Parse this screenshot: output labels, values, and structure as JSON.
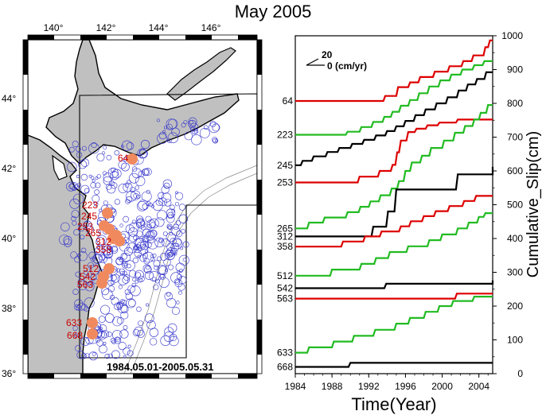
{
  "title": "May 2005",
  "map": {
    "lon_ticks": [
      "140°",
      "142°",
      "144°",
      "146°"
    ],
    "lat_ticks": [
      "44°",
      "42°",
      "40°",
      "38°",
      "36°"
    ],
    "date_range": "1984.05.01-2005.05.31",
    "event_labels": [
      "64",
      "223",
      "245",
      "253",
      "265",
      "312",
      "358",
      "512",
      "542",
      "563",
      "633",
      "668"
    ],
    "colors": {
      "land": "#c0c0c0",
      "event": "#f08a5e",
      "event_label": "#cc0000",
      "seismicity": "#3333cc"
    }
  },
  "chart_data": {
    "type": "line",
    "title": "",
    "xlabel": "Time(Year)",
    "ylabel": "Cumulative_Slip(cm)",
    "xlim": [
      1984,
      2005.5
    ],
    "ylim": [
      0,
      1000
    ],
    "x_ticks": [
      1984,
      1988,
      1992,
      1996,
      2000,
      2004
    ],
    "y_ticks": [
      0,
      100,
      200,
      300,
      400,
      500,
      600,
      700,
      800,
      900,
      1000
    ],
    "scale_legend": {
      "value": "20",
      "rate": "0 (cm/yr)"
    },
    "left_labels": [
      "64",
      "223",
      "245",
      "253",
      "265",
      "312",
      "358",
      "512",
      "542",
      "563",
      "633",
      "668"
    ],
    "series": [
      {
        "label": "64",
        "color": "#dd0000",
        "points": [
          [
            1984,
            807
          ],
          [
            1993.6,
            807
          ],
          [
            1993.8,
            822
          ],
          [
            1995.0,
            822
          ],
          [
            1995.2,
            848
          ],
          [
            1996.3,
            848
          ],
          [
            1996.5,
            862
          ],
          [
            1997.4,
            862
          ],
          [
            1997.6,
            878
          ],
          [
            1999.0,
            878
          ],
          [
            1999.2,
            894
          ],
          [
            2000.6,
            894
          ],
          [
            2000.8,
            910
          ],
          [
            2002.1,
            910
          ],
          [
            2002.3,
            925
          ],
          [
            2003.2,
            925
          ],
          [
            2003.4,
            942
          ],
          [
            2004.5,
            942
          ],
          [
            2004.7,
            966
          ],
          [
            2005.0,
            966
          ],
          [
            2005.2,
            986
          ],
          [
            2005.5,
            986
          ]
        ]
      },
      {
        "label": "223",
        "color": "#22bb22",
        "points": [
          [
            1984,
            707
          ],
          [
            1989.5,
            707
          ],
          [
            1989.7,
            716
          ],
          [
            1991.0,
            716
          ],
          [
            1991.2,
            730
          ],
          [
            1992.3,
            730
          ],
          [
            1992.5,
            745
          ],
          [
            1993.5,
            745
          ],
          [
            1993.7,
            760
          ],
          [
            1994.4,
            760
          ],
          [
            1994.6,
            775
          ],
          [
            1995.3,
            775
          ],
          [
            1995.5,
            793
          ],
          [
            1996.3,
            793
          ],
          [
            1996.5,
            810
          ],
          [
            1997.3,
            810
          ],
          [
            1997.5,
            830
          ],
          [
            1998.4,
            830
          ],
          [
            1998.6,
            850
          ],
          [
            1999.6,
            850
          ],
          [
            1999.8,
            868
          ],
          [
            2000.8,
            868
          ],
          [
            2001.0,
            885
          ],
          [
            2002.0,
            885
          ],
          [
            2002.2,
            900
          ],
          [
            2003.3,
            900
          ],
          [
            2003.5,
            913
          ],
          [
            2004.4,
            913
          ],
          [
            2004.6,
            925
          ],
          [
            2005.5,
            925
          ]
        ]
      },
      {
        "label": "245",
        "color": "#000000",
        "points": [
          [
            1984,
            617
          ],
          [
            1984.6,
            617
          ],
          [
            1984.8,
            630
          ],
          [
            1985.8,
            630
          ],
          [
            1986.0,
            643
          ],
          [
            1987.3,
            643
          ],
          [
            1987.5,
            656
          ],
          [
            1988.6,
            656
          ],
          [
            1988.8,
            668
          ],
          [
            1990.0,
            668
          ],
          [
            1990.2,
            680
          ],
          [
            1991.3,
            680
          ],
          [
            1991.5,
            692
          ],
          [
            1992.6,
            692
          ],
          [
            1992.8,
            705
          ],
          [
            1993.8,
            705
          ],
          [
            1994.0,
            718
          ],
          [
            1994.8,
            718
          ],
          [
            1995.0,
            732
          ],
          [
            1995.8,
            732
          ],
          [
            1996.0,
            748
          ],
          [
            1996.9,
            748
          ],
          [
            1997.1,
            765
          ],
          [
            1998.0,
            765
          ],
          [
            1998.2,
            782
          ],
          [
            1999.2,
            782
          ],
          [
            1999.4,
            800
          ],
          [
            2000.4,
            800
          ],
          [
            2000.6,
            818
          ],
          [
            2001.6,
            818
          ],
          [
            2001.8,
            838
          ],
          [
            2002.6,
            838
          ],
          [
            2002.8,
            856
          ],
          [
            2003.6,
            856
          ],
          [
            2003.8,
            872
          ],
          [
            2004.6,
            872
          ],
          [
            2004.8,
            892
          ],
          [
            2005.5,
            892
          ]
        ]
      },
      {
        "label": "253",
        "color": "#dd0000",
        "points": [
          [
            1984,
            566
          ],
          [
            1990.8,
            566
          ],
          [
            1991.0,
            583
          ],
          [
            1993.0,
            583
          ],
          [
            1993.2,
            600
          ],
          [
            1994.4,
            600
          ],
          [
            1994.6,
            618
          ],
          [
            1994.9,
            618
          ],
          [
            1995.1,
            655
          ],
          [
            1995.3,
            655
          ],
          [
            1995.5,
            690
          ],
          [
            1996.1,
            690
          ],
          [
            1996.3,
            715
          ],
          [
            1997.0,
            715
          ],
          [
            1997.2,
            725
          ],
          [
            1998.2,
            725
          ],
          [
            1998.4,
            735
          ],
          [
            1999.5,
            735
          ],
          [
            1999.7,
            743
          ],
          [
            2001.5,
            743
          ],
          [
            2001.7,
            752
          ],
          [
            2005.5,
            752
          ]
        ]
      },
      {
        "label": "265",
        "color": "#22bb22",
        "points": [
          [
            1984,
            430
          ],
          [
            1985.3,
            430
          ],
          [
            1985.5,
            447
          ],
          [
            1987.0,
            447
          ],
          [
            1987.2,
            462
          ],
          [
            1989.5,
            462
          ],
          [
            1989.7,
            478
          ],
          [
            1990.9,
            478
          ],
          [
            1991.1,
            494
          ],
          [
            1992.0,
            494
          ],
          [
            1992.2,
            510
          ],
          [
            1993.1,
            510
          ],
          [
            1993.3,
            528
          ],
          [
            1994.3,
            528
          ],
          [
            1994.5,
            548
          ],
          [
            1995.1,
            548
          ],
          [
            1995.3,
            570
          ],
          [
            1995.8,
            570
          ],
          [
            1996.0,
            600
          ],
          [
            1996.5,
            600
          ],
          [
            1996.7,
            625
          ],
          [
            1997.6,
            625
          ],
          [
            1997.8,
            645
          ],
          [
            1998.6,
            645
          ],
          [
            1998.8,
            668
          ],
          [
            2000.0,
            668
          ],
          [
            2000.2,
            690
          ],
          [
            2001.2,
            690
          ],
          [
            2001.4,
            713
          ],
          [
            2002.3,
            713
          ],
          [
            2002.5,
            733
          ],
          [
            2003.3,
            733
          ],
          [
            2003.5,
            752
          ],
          [
            2004.0,
            752
          ],
          [
            2004.2,
            772
          ],
          [
            2004.8,
            772
          ],
          [
            2005.0,
            795
          ],
          [
            2005.5,
            795
          ]
        ]
      },
      {
        "label": "312",
        "color": "#000000",
        "points": [
          [
            1984,
            406
          ],
          [
            1992.3,
            406
          ],
          [
            1992.5,
            435
          ],
          [
            1993.9,
            435
          ],
          [
            1994.1,
            480
          ],
          [
            1994.8,
            480
          ],
          [
            1995.0,
            545
          ],
          [
            2001.5,
            545
          ],
          [
            2001.7,
            590
          ],
          [
            2005.5,
            590
          ],
          [
            2005.5,
            612
          ]
        ]
      },
      {
        "label": "358",
        "color": "#dd0000",
        "points": [
          [
            1984,
            376
          ],
          [
            1989.0,
            376
          ],
          [
            1989.2,
            391
          ],
          [
            1991.4,
            391
          ],
          [
            1991.6,
            406
          ],
          [
            1993.2,
            406
          ],
          [
            1993.4,
            421
          ],
          [
            1995.3,
            421
          ],
          [
            1995.5,
            436
          ],
          [
            1996.4,
            436
          ],
          [
            1996.6,
            451
          ],
          [
            1997.8,
            451
          ],
          [
            1998.0,
            466
          ],
          [
            1999.1,
            466
          ],
          [
            1999.3,
            481
          ],
          [
            2000.6,
            481
          ],
          [
            2000.8,
            496
          ],
          [
            2002.2,
            496
          ],
          [
            2002.4,
            511
          ],
          [
            2003.5,
            511
          ],
          [
            2003.7,
            526
          ],
          [
            2005.5,
            526
          ]
        ]
      },
      {
        "label": "512",
        "color": "#22bb22",
        "points": [
          [
            1984,
            290
          ],
          [
            1987.8,
            290
          ],
          [
            1988.0,
            308
          ],
          [
            1991.0,
            308
          ],
          [
            1991.2,
            325
          ],
          [
            1992.6,
            325
          ],
          [
            1992.8,
            342
          ],
          [
            1994.1,
            342
          ],
          [
            1994.3,
            360
          ],
          [
            1996.1,
            360
          ],
          [
            1996.3,
            377
          ],
          [
            1998.4,
            377
          ],
          [
            1998.6,
            395
          ],
          [
            1999.8,
            395
          ],
          [
            2000.0,
            412
          ],
          [
            2001.5,
            412
          ],
          [
            2001.7,
            430
          ],
          [
            2002.7,
            430
          ],
          [
            2002.9,
            447
          ],
          [
            2003.8,
            447
          ],
          [
            2004.0,
            464
          ],
          [
            2004.5,
            464
          ],
          [
            2004.7,
            475
          ],
          [
            2005.5,
            475
          ]
        ]
      },
      {
        "label": "542",
        "color": "#000000",
        "points": [
          [
            1984,
            253
          ],
          [
            1993.7,
            253
          ],
          [
            1993.9,
            266
          ],
          [
            2005.5,
            266
          ],
          [
            2005.5,
            276
          ]
        ]
      },
      {
        "label": "563",
        "color": "#dd0000",
        "points": [
          [
            1984,
            222
          ],
          [
            2001.4,
            222
          ],
          [
            2001.6,
            237
          ],
          [
            2005.5,
            237
          ]
        ]
      },
      {
        "label": "633",
        "color": "#22bb22",
        "points": [
          [
            1984,
            62
          ],
          [
            1985.3,
            62
          ],
          [
            1985.5,
            78
          ],
          [
            1988.0,
            78
          ],
          [
            1988.2,
            95
          ],
          [
            1990.2,
            95
          ],
          [
            1990.4,
            112
          ],
          [
            1992.5,
            112
          ],
          [
            1992.7,
            130
          ],
          [
            1994.8,
            130
          ],
          [
            1995.0,
            148
          ],
          [
            1996.3,
            148
          ],
          [
            1996.5,
            165
          ],
          [
            1998.0,
            165
          ],
          [
            1998.2,
            183
          ],
          [
            1999.5,
            183
          ],
          [
            1999.7,
            200
          ],
          [
            2001.0,
            200
          ],
          [
            2001.2,
            215
          ],
          [
            2003.3,
            215
          ],
          [
            2003.5,
            228
          ],
          [
            2005.5,
            228
          ]
        ]
      },
      {
        "label": "668",
        "color": "#000000",
        "points": [
          [
            1984,
            20
          ],
          [
            1989.8,
            20
          ],
          [
            1990.0,
            32
          ],
          [
            2005.5,
            32
          ]
        ]
      }
    ]
  }
}
